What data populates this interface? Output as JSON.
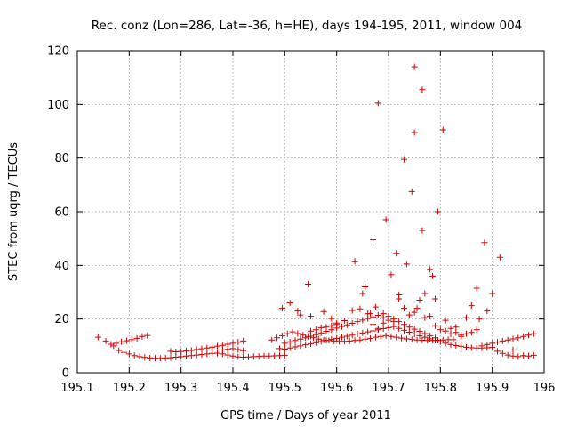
{
  "chart_data": {
    "type": "scatter",
    "title": "Rec. conz (Lon=286, Lat=-36, h=HE), days 194-195, 2011, window 004",
    "xlabel": "GPS time / Days of year 2011",
    "ylabel": "STEC from uqrg / TECUs",
    "xlim": [
      195.1,
      196.0
    ],
    "ylim": [
      0,
      120
    ],
    "xticks": [
      195.1,
      195.2,
      195.3,
      195.4,
      195.5,
      195.6,
      195.7,
      195.8,
      195.9,
      196.0
    ],
    "xtick_labels": [
      "195.1",
      "195.2",
      "195.3",
      "195.4",
      "195.5",
      "195.6",
      "195.7",
      "195.8",
      "195.9",
      "196"
    ],
    "yticks": [
      0,
      20,
      40,
      60,
      80,
      100,
      120
    ],
    "ytick_labels": [
      "0",
      "20",
      "40",
      "60",
      "80",
      "100",
      "120"
    ],
    "grid": true,
    "marker": "+",
    "color": "#d00000",
    "points": [
      [
        195.14,
        13.2
      ],
      [
        195.155,
        11.8
      ],
      [
        195.165,
        10.6
      ],
      [
        195.175,
        11.0
      ],
      [
        195.185,
        11.5
      ],
      [
        195.195,
        11.9
      ],
      [
        195.205,
        12.3
      ],
      [
        195.215,
        12.8
      ],
      [
        195.225,
        13.5
      ],
      [
        195.235,
        13.9
      ],
      [
        195.17,
        10.0
      ],
      [
        195.18,
        8.3
      ],
      [
        195.19,
        7.6
      ],
      [
        195.2,
        7.0
      ],
      [
        195.21,
        6.4
      ],
      [
        195.22,
        6.0
      ],
      [
        195.23,
        5.7
      ],
      [
        195.24,
        5.5
      ],
      [
        195.25,
        5.4
      ],
      [
        195.26,
        5.4
      ],
      [
        195.27,
        5.5
      ],
      [
        195.28,
        5.6
      ],
      [
        195.29,
        5.8
      ],
      [
        195.3,
        6.0
      ],
      [
        195.31,
        6.2
      ],
      [
        195.32,
        6.4
      ],
      [
        195.33,
        6.6
      ],
      [
        195.34,
        6.8
      ],
      [
        195.35,
        7.0
      ],
      [
        195.36,
        7.2
      ],
      [
        195.37,
        7.3
      ],
      [
        195.38,
        7.0
      ],
      [
        195.39,
        6.6
      ],
      [
        195.4,
        6.2
      ],
      [
        195.41,
        5.9
      ],
      [
        195.42,
        5.8
      ],
      [
        195.43,
        5.9
      ],
      [
        195.44,
        6.0
      ],
      [
        195.45,
        6.1
      ],
      [
        195.46,
        6.2
      ],
      [
        195.47,
        6.2
      ],
      [
        195.48,
        6.3
      ],
      [
        195.49,
        6.4
      ],
      [
        195.5,
        6.5
      ],
      [
        195.28,
        8.0
      ],
      [
        195.29,
        7.8
      ],
      [
        195.3,
        7.9
      ],
      [
        195.31,
        8.1
      ],
      [
        195.32,
        8.3
      ],
      [
        195.33,
        8.6
      ],
      [
        195.34,
        8.9
      ],
      [
        195.35,
        9.2
      ],
      [
        195.36,
        9.5
      ],
      [
        195.37,
        9.9
      ],
      [
        195.38,
        10.2
      ],
      [
        195.39,
        10.6
      ],
      [
        195.4,
        11.0
      ],
      [
        195.41,
        11.4
      ],
      [
        195.42,
        11.8
      ],
      [
        195.38,
        8.5
      ],
      [
        195.39,
        8.7
      ],
      [
        195.4,
        9.0
      ],
      [
        195.41,
        8.6
      ],
      [
        195.42,
        8.2
      ],
      [
        195.475,
        12.2
      ],
      [
        195.485,
        13.0
      ],
      [
        195.495,
        13.8
      ],
      [
        195.505,
        14.5
      ],
      [
        195.515,
        15.2
      ],
      [
        195.525,
        14.6
      ],
      [
        195.535,
        14.0
      ],
      [
        195.545,
        13.5
      ],
      [
        195.555,
        13.0
      ],
      [
        195.565,
        12.5
      ],
      [
        195.575,
        12.2
      ],
      [
        195.585,
        12.0
      ],
      [
        195.595,
        11.8
      ],
      [
        195.605,
        11.7
      ],
      [
        195.615,
        11.7
      ],
      [
        195.625,
        11.8
      ],
      [
        195.635,
        12.0
      ],
      [
        195.645,
        12.2
      ],
      [
        195.655,
        12.5
      ],
      [
        195.665,
        12.8
      ],
      [
        195.675,
        13.2
      ],
      [
        195.685,
        13.5
      ],
      [
        195.695,
        13.8
      ],
      [
        195.705,
        13.5
      ],
      [
        195.715,
        13.2
      ],
      [
        195.725,
        12.9
      ],
      [
        195.735,
        12.6
      ],
      [
        195.745,
        12.4
      ],
      [
        195.755,
        12.2
      ],
      [
        195.765,
        12.1
      ],
      [
        195.775,
        12.0
      ],
      [
        195.785,
        12.0
      ],
      [
        195.795,
        12.1
      ],
      [
        195.805,
        12.2
      ],
      [
        195.815,
        12.3
      ],
      [
        195.825,
        12.3
      ],
      [
        195.49,
        9.0
      ],
      [
        195.5,
        8.8
      ],
      [
        195.51,
        9.2
      ],
      [
        195.52,
        9.6
      ],
      [
        195.53,
        10.0
      ],
      [
        195.54,
        10.4
      ],
      [
        195.55,
        10.8
      ],
      [
        195.56,
        11.2
      ],
      [
        195.57,
        11.6
      ],
      [
        195.58,
        12.0
      ],
      [
        195.59,
        12.4
      ],
      [
        195.6,
        12.8
      ],
      [
        195.61,
        13.2
      ],
      [
        195.62,
        13.6
      ],
      [
        195.63,
        14.0
      ],
      [
        195.64,
        14.4
      ],
      [
        195.65,
        14.8
      ],
      [
        195.66,
        15.2
      ],
      [
        195.67,
        15.6
      ],
      [
        195.68,
        16.0
      ],
      [
        195.69,
        16.4
      ],
      [
        195.7,
        16.8
      ],
      [
        195.71,
        17.2
      ],
      [
        195.72,
        16.5
      ],
      [
        195.73,
        15.8
      ],
      [
        195.74,
        15.1
      ],
      [
        195.75,
        14.4
      ],
      [
        195.76,
        13.8
      ],
      [
        195.77,
        13.2
      ],
      [
        195.78,
        12.6
      ],
      [
        195.79,
        12.0
      ],
      [
        195.8,
        11.5
      ],
      [
        195.81,
        11.0
      ],
      [
        195.82,
        10.5
      ],
      [
        195.83,
        10.1
      ],
      [
        195.84,
        9.8
      ],
      [
        195.85,
        9.5
      ],
      [
        195.86,
        9.3
      ],
      [
        195.87,
        9.2
      ],
      [
        195.88,
        9.2
      ],
      [
        195.89,
        9.3
      ],
      [
        195.9,
        9.5
      ],
      [
        195.5,
        11.0
      ],
      [
        195.51,
        11.5
      ],
      [
        195.52,
        12.0
      ],
      [
        195.53,
        12.5
      ],
      [
        195.54,
        13.0
      ],
      [
        195.55,
        13.6
      ],
      [
        195.56,
        14.2
      ],
      [
        195.57,
        14.8
      ],
      [
        195.58,
        15.4
      ],
      [
        195.59,
        16.0
      ],
      [
        195.6,
        16.6
      ],
      [
        195.61,
        17.2
      ],
      [
        195.62,
        17.8
      ],
      [
        195.63,
        18.4
      ],
      [
        195.64,
        19.0
      ],
      [
        195.65,
        19.6
      ],
      [
        195.66,
        20.2
      ],
      [
        195.67,
        20.8
      ],
      [
        195.68,
        21.4
      ],
      [
        195.69,
        22.0
      ],
      [
        195.7,
        21.0
      ],
      [
        195.71,
        20.0
      ],
      [
        195.72,
        19.0
      ],
      [
        195.73,
        18.0
      ],
      [
        195.74,
        17.0
      ],
      [
        195.75,
        16.2
      ],
      [
        195.76,
        15.4
      ],
      [
        195.77,
        14.6
      ],
      [
        195.78,
        13.8
      ],
      [
        195.79,
        13.0
      ],
      [
        195.495,
        24.0
      ],
      [
        195.51,
        26.0
      ],
      [
        195.525,
        23.0
      ],
      [
        195.53,
        21.5
      ],
      [
        195.545,
        33.0
      ],
      [
        195.55,
        21.0
      ],
      [
        195.575,
        22.8
      ],
      [
        195.59,
        20.2
      ],
      [
        195.6,
        18.0
      ],
      [
        195.615,
        19.4
      ],
      [
        195.63,
        23.2
      ],
      [
        195.635,
        41.5
      ],
      [
        195.645,
        23.8
      ],
      [
        195.65,
        29.5
      ],
      [
        195.655,
        32.0
      ],
      [
        195.665,
        22.0
      ],
      [
        195.67,
        49.5
      ],
      [
        195.675,
        24.5
      ],
      [
        195.68,
        100.5
      ],
      [
        195.69,
        20.5
      ],
      [
        195.695,
        57.0
      ],
      [
        195.705,
        36.5
      ],
      [
        195.715,
        44.5
      ],
      [
        195.72,
        29.0
      ],
      [
        195.73,
        79.5
      ],
      [
        195.735,
        40.5
      ],
      [
        195.745,
        67.5
      ],
      [
        195.75,
        114.0
      ],
      [
        195.75,
        89.5
      ],
      [
        195.755,
        24.0
      ],
      [
        195.765,
        105.5
      ],
      [
        195.765,
        53.0
      ],
      [
        195.77,
        29.5
      ],
      [
        195.78,
        38.5
      ],
      [
        195.785,
        36.0
      ],
      [
        195.79,
        27.5
      ],
      [
        195.795,
        60.0
      ],
      [
        195.805,
        90.5
      ],
      [
        195.81,
        19.5
      ],
      [
        195.82,
        16.5
      ],
      [
        195.83,
        17.0
      ],
      [
        195.84,
        14.0
      ],
      [
        195.85,
        20.5
      ],
      [
        195.86,
        25.0
      ],
      [
        195.87,
        31.5
      ],
      [
        195.875,
        20.0
      ],
      [
        195.885,
        48.5
      ],
      [
        195.89,
        23.0
      ],
      [
        195.9,
        29.5
      ],
      [
        195.915,
        43.0
      ],
      [
        195.66,
        22.0
      ],
      [
        195.67,
        18.0
      ],
      [
        195.68,
        16.5
      ],
      [
        195.69,
        18.5
      ],
      [
        195.7,
        19.5
      ],
      [
        195.71,
        19.0
      ],
      [
        195.72,
        27.5
      ],
      [
        195.73,
        24.0
      ],
      [
        195.74,
        21.5
      ],
      [
        195.75,
        22.5
      ],
      [
        195.76,
        27.0
      ],
      [
        195.77,
        20.5
      ],
      [
        195.78,
        21.0
      ],
      [
        195.79,
        17.5
      ],
      [
        195.8,
        16.0
      ],
      [
        195.81,
        15.5
      ],
      [
        195.82,
        14.5
      ],
      [
        195.83,
        15.0
      ],
      [
        195.84,
        13.5
      ],
      [
        195.85,
        14.5
      ],
      [
        195.86,
        15.0
      ],
      [
        195.87,
        16.0
      ],
      [
        195.55,
        15.5
      ],
      [
        195.56,
        16.0
      ],
      [
        195.57,
        16.8
      ],
      [
        195.58,
        17.0
      ],
      [
        195.59,
        17.5
      ],
      [
        195.6,
        18.5
      ],
      [
        195.88,
        10.0
      ],
      [
        195.89,
        10.5
      ],
      [
        195.9,
        11.0
      ],
      [
        195.91,
        11.4
      ],
      [
        195.92,
        11.8
      ],
      [
        195.93,
        12.2
      ],
      [
        195.94,
        12.6
      ],
      [
        195.95,
        13.0
      ],
      [
        195.96,
        13.5
      ],
      [
        195.97,
        14.0
      ],
      [
        195.98,
        14.5
      ],
      [
        195.91,
        8.0
      ],
      [
        195.92,
        7.2
      ],
      [
        195.93,
        6.6
      ],
      [
        195.94,
        6.2
      ],
      [
        195.95,
        6.0
      ],
      [
        195.96,
        6.4
      ],
      [
        195.97,
        6.2
      ],
      [
        195.98,
        6.5
      ],
      [
        195.94,
        8.5
      ]
    ]
  }
}
